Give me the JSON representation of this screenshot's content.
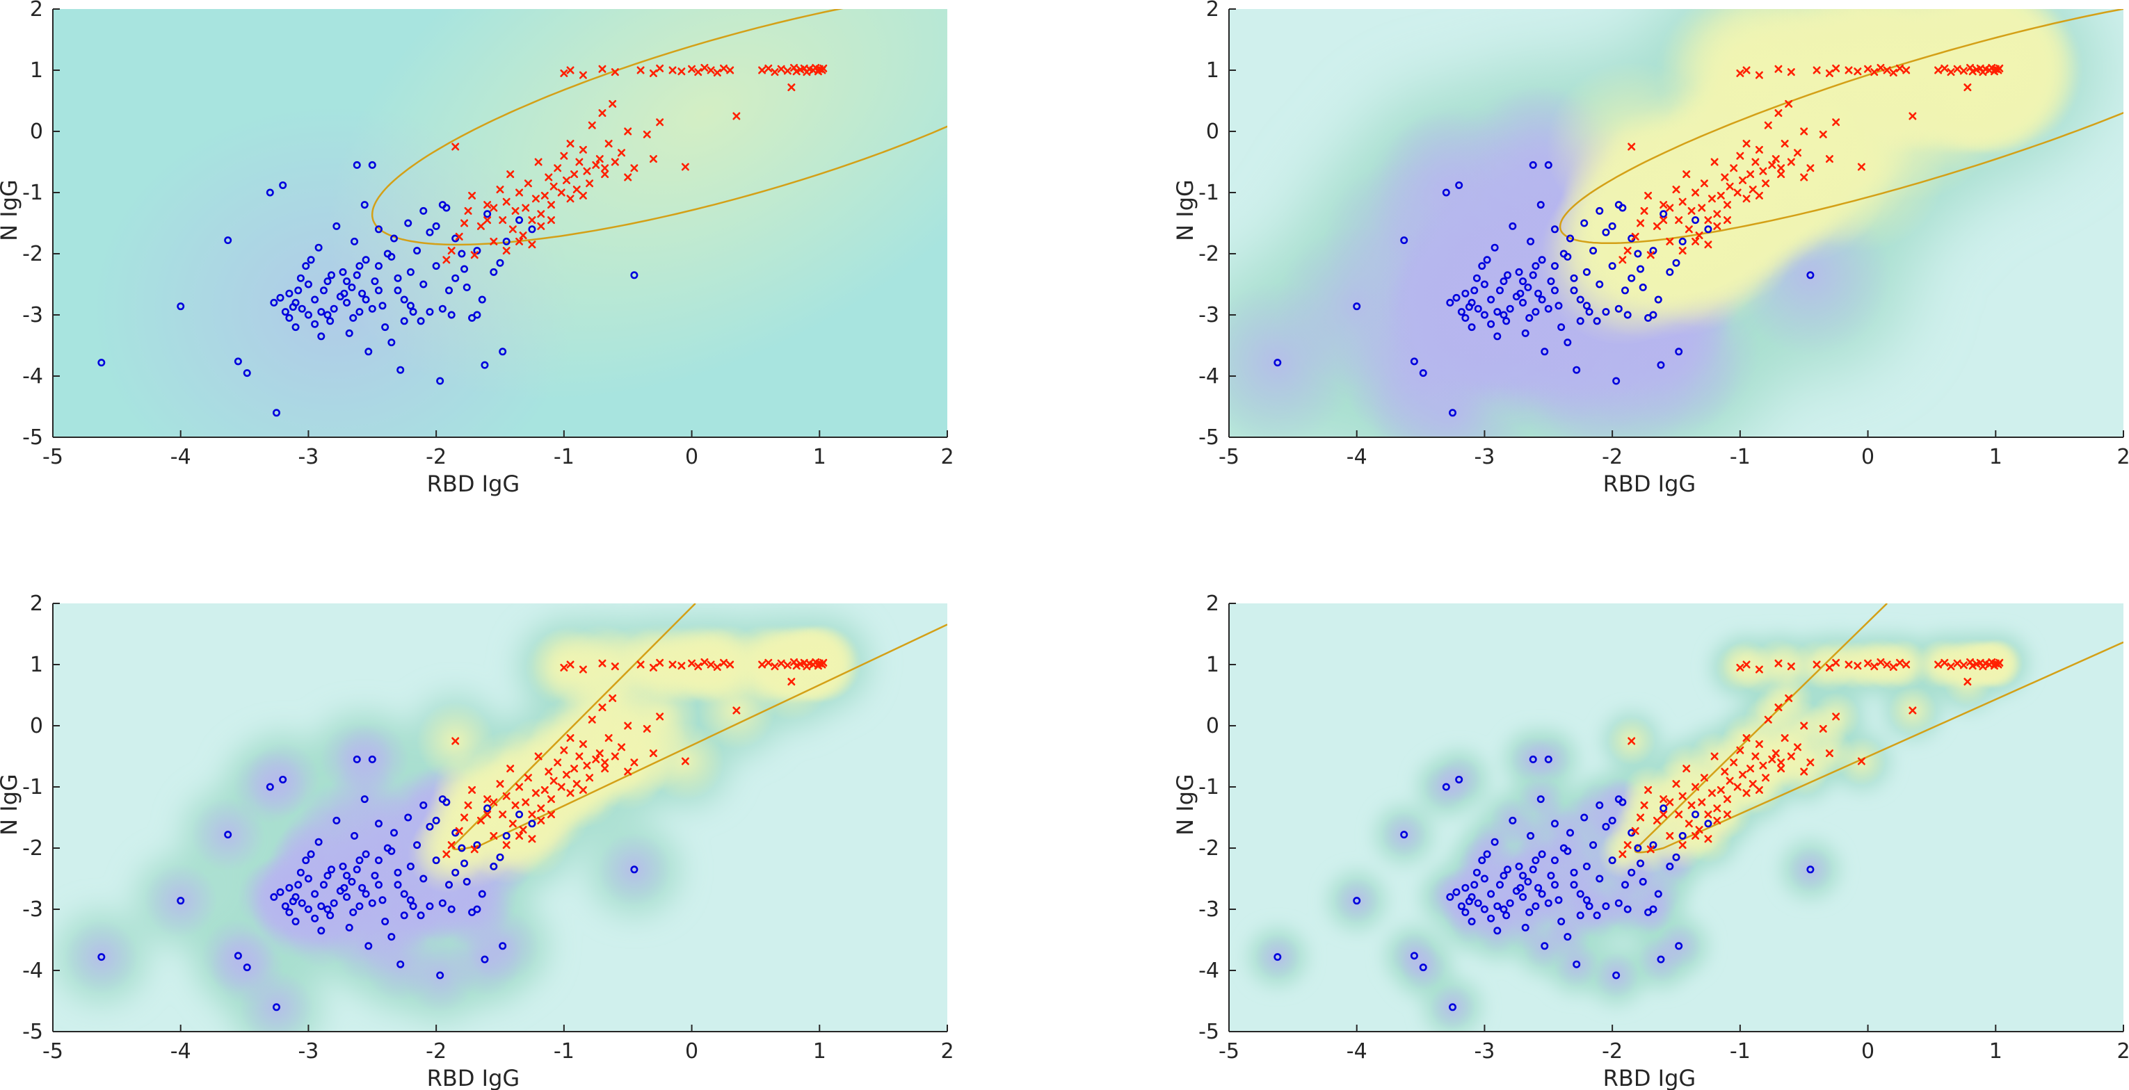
{
  "figure": {
    "colors": {
      "background_a": "#a8e4df",
      "background_b": "#d0f0ed",
      "negative_blob": "#b7b6ef",
      "positive_blob": "#f1f5b2",
      "mid_blob": "#a8dfcf",
      "boundary": "#d4a017",
      "negative_marker": "#0000dd",
      "positive_marker": "#ff2000",
      "axis": "#262626"
    }
  },
  "chart_data": [
    {
      "type": "scatter",
      "panel": "top-left",
      "xlabel": "RBD IgG",
      "ylabel": "N IgG",
      "xlim": [
        -5,
        2
      ],
      "ylim": [
        -5,
        2
      ],
      "xticks": [
        "-5",
        "-4",
        "-3",
        "-2",
        "-1",
        "0",
        "1",
        "2"
      ],
      "yticks": [
        "-5",
        "-4",
        "-3",
        "-2",
        "-1",
        "0",
        "1",
        "2"
      ],
      "density_smoothing": 1.6,
      "boundary_shape": "ellipse",
      "boundary": {
        "cx": 0.35,
        "cy": 0.25,
        "a": 3.35,
        "b": 1.15,
        "angle_deg": 34
      }
    },
    {
      "type": "scatter",
      "panel": "top-right",
      "xlabel": "RBD IgG",
      "ylabel": "N IgG",
      "xlim": [
        -5,
        2
      ],
      "ylim": [
        -5,
        2
      ],
      "xticks": [
        "-5",
        "-4",
        "-3",
        "-2",
        "-1",
        "0",
        "1",
        "2"
      ],
      "yticks": [
        "-5",
        "-4",
        "-3",
        "-2",
        "-1",
        "0",
        "1",
        "2"
      ],
      "density_smoothing": 0.7,
      "boundary_shape": "ellipse",
      "boundary": {
        "cx": 0.45,
        "cy": 0.2,
        "a": 3.4,
        "b": 0.85,
        "angle_deg": 34
      }
    },
    {
      "type": "scatter",
      "panel": "bottom-left",
      "xlabel": "RBD IgG",
      "ylabel": "N IgG",
      "xlim": [
        -5,
        2
      ],
      "ylim": [
        -5,
        2
      ],
      "xticks": [
        "-5",
        "-4",
        "-3",
        "-2",
        "-1",
        "0",
        "1",
        "2"
      ],
      "yticks": [
        "-5",
        "-4",
        "-3",
        "-2",
        "-1",
        "0",
        "1",
        "2"
      ],
      "density_smoothing": 0.32,
      "boundary_shape": "wedge",
      "boundary": {
        "vx": -1.9,
        "vy": -2.05,
        "upper_slope": 2.1,
        "lower_slope": 0.95
      }
    },
    {
      "type": "scatter",
      "panel": "bottom-right",
      "xlabel": "RBD IgG",
      "ylabel": "N IgG",
      "xlim": [
        -5,
        2
      ],
      "ylim": [
        -5,
        2
      ],
      "xticks": [
        "-5",
        "-4",
        "-3",
        "-2",
        "-1",
        "0",
        "1",
        "2"
      ],
      "yticks": [
        "-5",
        "-4",
        "-3",
        "-2",
        "-1",
        "0",
        "1",
        "2"
      ],
      "density_smoothing": 0.2,
      "boundary_shape": "wedge",
      "boundary": {
        "vx": -1.85,
        "vy": -2.1,
        "upper_slope": 2.05,
        "lower_slope": 0.9
      }
    }
  ],
  "negative_samples": [
    [
      -4.62,
      -3.78
    ],
    [
      -4.0,
      -2.86
    ],
    [
      -3.63,
      -1.78
    ],
    [
      -3.55,
      -3.76
    ],
    [
      -3.48,
      -3.95
    ],
    [
      -3.25,
      -4.6
    ],
    [
      -3.27,
      -2.8
    ],
    [
      -3.3,
      -1.0
    ],
    [
      -3.2,
      -0.88
    ],
    [
      -3.22,
      -2.72
    ],
    [
      -3.18,
      -2.95
    ],
    [
      -3.15,
      -3.05
    ],
    [
      -3.12,
      -2.87
    ],
    [
      -3.1,
      -3.2
    ],
    [
      -3.08,
      -2.6
    ],
    [
      -3.06,
      -2.4
    ],
    [
      -3.05,
      -2.9
    ],
    [
      -3.02,
      -2.2
    ],
    [
      -3.0,
      -3.0
    ],
    [
      -2.98,
      -2.1
    ],
    [
      -2.95,
      -2.75
    ],
    [
      -2.92,
      -1.9
    ],
    [
      -2.9,
      -3.35
    ],
    [
      -2.88,
      -2.6
    ],
    [
      -2.85,
      -2.45
    ],
    [
      -2.83,
      -3.1
    ],
    [
      -2.8,
      -2.9
    ],
    [
      -2.78,
      -1.55
    ],
    [
      -2.75,
      -2.7
    ],
    [
      -2.73,
      -2.3
    ],
    [
      -2.7,
      -2.8
    ],
    [
      -2.68,
      -3.3
    ],
    [
      -2.66,
      -2.55
    ],
    [
      -2.64,
      -1.8
    ],
    [
      -2.62,
      -0.55
    ],
    [
      -2.6,
      -2.95
    ],
    [
      -2.58,
      -2.65
    ],
    [
      -2.56,
      -1.2
    ],
    [
      -2.55,
      -2.1
    ],
    [
      -2.53,
      -3.6
    ],
    [
      -2.5,
      -0.55
    ],
    [
      -2.48,
      -2.45
    ],
    [
      -2.45,
      -1.6
    ],
    [
      -2.42,
      -2.85
    ],
    [
      -2.4,
      -3.2
    ],
    [
      -2.38,
      -2.0
    ],
    [
      -2.35,
      -3.45
    ],
    [
      -2.33,
      -1.75
    ],
    [
      -2.3,
      -2.6
    ],
    [
      -2.28,
      -3.9
    ],
    [
      -2.25,
      -2.75
    ],
    [
      -2.22,
      -1.5
    ],
    [
      -2.2,
      -2.3
    ],
    [
      -2.18,
      -2.95
    ],
    [
      -2.15,
      -1.95
    ],
    [
      -2.12,
      -3.1
    ],
    [
      -2.1,
      -2.5
    ],
    [
      -2.05,
      -1.65
    ],
    [
      -2.0,
      -2.2
    ],
    [
      -1.97,
      -4.08
    ],
    [
      -1.95,
      -2.9
    ],
    [
      -1.92,
      -1.25
    ],
    [
      -1.9,
      -2.6
    ],
    [
      -1.88,
      -3.0
    ],
    [
      -1.85,
      -2.4
    ],
    [
      -1.8,
      -2.0
    ],
    [
      -1.76,
      -2.55
    ],
    [
      -1.72,
      -3.05
    ],
    [
      -1.68,
      -1.95
    ],
    [
      -1.64,
      -2.75
    ],
    [
      -1.6,
      -1.35
    ],
    [
      -1.55,
      -2.3
    ],
    [
      -1.5,
      -2.15
    ],
    [
      -1.45,
      -1.8
    ],
    [
      -1.68,
      -3.0
    ],
    [
      -1.62,
      -3.82
    ],
    [
      -1.48,
      -3.6
    ],
    [
      -1.25,
      -1.6
    ],
    [
      -1.35,
      -1.45
    ],
    [
      -0.45,
      -2.35
    ],
    [
      -2.9,
      -2.95
    ],
    [
      -2.72,
      -2.65
    ],
    [
      -2.82,
      -2.35
    ],
    [
      -3.0,
      -2.5
    ],
    [
      -2.6,
      -2.2
    ],
    [
      -2.5,
      -2.9
    ],
    [
      -3.1,
      -2.8
    ],
    [
      -2.95,
      -3.15
    ],
    [
      -2.7,
      -2.45
    ],
    [
      -2.65,
      -3.05
    ],
    [
      -2.45,
      -2.2
    ],
    [
      -2.3,
      -2.4
    ],
    [
      -2.2,
      -2.85
    ],
    [
      -2.1,
      -1.3
    ],
    [
      -2.0,
      -1.55
    ],
    [
      -1.95,
      -1.2
    ],
    [
      -2.05,
      -2.95
    ],
    [
      -1.85,
      -1.75
    ],
    [
      -1.78,
      -2.25
    ],
    [
      -2.35,
      -2.05
    ],
    [
      -2.55,
      -2.75
    ],
    [
      -3.15,
      -2.65
    ],
    [
      -2.85,
      -3.0
    ],
    [
      -2.62,
      -2.35
    ],
    [
      -2.45,
      -2.6
    ],
    [
      -2.25,
      -3.1
    ]
  ],
  "positive_samples": [
    [
      -1.92,
      -2.1
    ],
    [
      -1.88,
      -1.95
    ],
    [
      -1.82,
      -1.72
    ],
    [
      -1.78,
      -1.5
    ],
    [
      -1.75,
      -1.3
    ],
    [
      -1.72,
      -1.05
    ],
    [
      -1.7,
      -2.02
    ],
    [
      -1.65,
      -1.55
    ],
    [
      -1.6,
      -1.2
    ],
    [
      -1.55,
      -1.8
    ],
    [
      -1.5,
      -0.95
    ],
    [
      -1.48,
      -1.45
    ],
    [
      -1.45,
      -1.15
    ],
    [
      -1.42,
      -0.7
    ],
    [
      -1.4,
      -1.6
    ],
    [
      -1.38,
      -1.3
    ],
    [
      -1.35,
      -1.0
    ],
    [
      -1.32,
      -1.7
    ],
    [
      -1.3,
      -1.25
    ],
    [
      -1.28,
      -0.85
    ],
    [
      -1.25,
      -1.45
    ],
    [
      -1.22,
      -1.1
    ],
    [
      -1.2,
      -0.5
    ],
    [
      -1.18,
      -1.35
    ],
    [
      -1.15,
      -1.05
    ],
    [
      -1.12,
      -0.75
    ],
    [
      -1.1,
      -1.2
    ],
    [
      -1.08,
      -0.9
    ],
    [
      -1.05,
      -0.6
    ],
    [
      -1.02,
      -1.0
    ],
    [
      -1.0,
      -0.4
    ],
    [
      -0.98,
      -0.8
    ],
    [
      -0.95,
      -0.2
    ],
    [
      -0.92,
      -0.7
    ],
    [
      -0.9,
      -0.95
    ],
    [
      -0.88,
      -0.5
    ],
    [
      -0.85,
      -0.3
    ],
    [
      -0.82,
      -0.65
    ],
    [
      -0.8,
      -0.85
    ],
    [
      -0.78,
      0.1
    ],
    [
      -0.75,
      -0.55
    ],
    [
      -0.72,
      -0.45
    ],
    [
      -0.7,
      0.3
    ],
    [
      -0.68,
      -0.7
    ],
    [
      -0.65,
      -0.2
    ],
    [
      -0.62,
      0.45
    ],
    [
      -0.6,
      -0.5
    ],
    [
      -0.55,
      -0.35
    ],
    [
      -0.5,
      0.0
    ],
    [
      -0.45,
      -0.6
    ],
    [
      -0.35,
      -0.05
    ],
    [
      -0.3,
      -0.45
    ],
    [
      -0.25,
      0.15
    ],
    [
      -0.05,
      -0.58
    ],
    [
      0.35,
      0.25
    ],
    [
      -1.85,
      -0.25
    ],
    [
      -1.0,
      0.95
    ],
    [
      -0.95,
      1.0
    ],
    [
      -0.85,
      0.92
    ],
    [
      -0.7,
      1.02
    ],
    [
      -0.6,
      0.97
    ],
    [
      -0.4,
      1.0
    ],
    [
      -0.3,
      0.95
    ],
    [
      -0.25,
      1.03
    ],
    [
      -0.15,
      1.0
    ],
    [
      -0.08,
      0.98
    ],
    [
      0.0,
      1.02
    ],
    [
      0.05,
      0.97
    ],
    [
      0.1,
      1.04
    ],
    [
      0.15,
      1.0
    ],
    [
      0.2,
      0.96
    ],
    [
      0.25,
      1.03
    ],
    [
      0.3,
      1.0
    ],
    [
      0.55,
      1.0
    ],
    [
      0.6,
      1.03
    ],
    [
      0.65,
      0.97
    ],
    [
      0.7,
      1.02
    ],
    [
      0.75,
      0.99
    ],
    [
      0.8,
      1.04
    ],
    [
      0.82,
      0.98
    ],
    [
      0.85,
      1.01
    ],
    [
      0.88,
      1.03
    ],
    [
      0.9,
      0.97
    ],
    [
      0.92,
      1.02
    ],
    [
      0.95,
      1.0
    ],
    [
      0.97,
      1.04
    ],
    [
      0.99,
      0.98
    ],
    [
      1.0,
      1.02
    ],
    [
      1.02,
      1.0
    ],
    [
      1.03,
      1.03
    ],
    [
      0.78,
      0.72
    ],
    [
      -1.6,
      -1.45
    ],
    [
      -1.55,
      -1.25
    ],
    [
      -1.25,
      -1.85
    ],
    [
      -1.18,
      -1.55
    ],
    [
      -1.1,
      -1.45
    ],
    [
      -0.95,
      -1.1
    ],
    [
      -0.85,
      -1.05
    ],
    [
      -1.35,
      -1.8
    ],
    [
      -1.45,
      -1.95
    ],
    [
      -0.68,
      -0.6
    ],
    [
      -0.5,
      -0.75
    ]
  ]
}
